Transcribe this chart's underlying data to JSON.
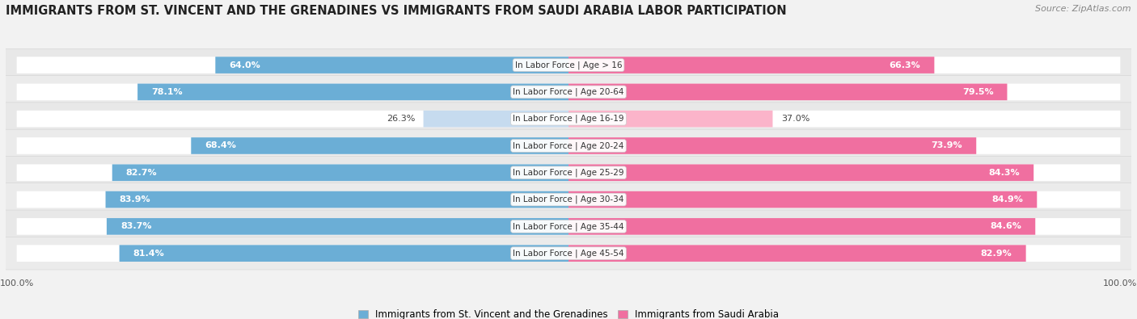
{
  "title": "IMMIGRANTS FROM ST. VINCENT AND THE GRENADINES VS IMMIGRANTS FROM SAUDI ARABIA LABOR PARTICIPATION",
  "source": "Source: ZipAtlas.com",
  "categories": [
    "In Labor Force | Age > 16",
    "In Labor Force | Age 20-64",
    "In Labor Force | Age 16-19",
    "In Labor Force | Age 20-24",
    "In Labor Force | Age 25-29",
    "In Labor Force | Age 30-34",
    "In Labor Force | Age 35-44",
    "In Labor Force | Age 45-54"
  ],
  "left_values": [
    64.0,
    78.1,
    26.3,
    68.4,
    82.7,
    83.9,
    83.7,
    81.4
  ],
  "right_values": [
    66.3,
    79.5,
    37.0,
    73.9,
    84.3,
    84.9,
    84.6,
    82.9
  ],
  "left_color": "#6baed6",
  "right_color": "#f06fa0",
  "left_color_light": "#c6dbef",
  "right_color_light": "#fbb4ca",
  "label_left": "Immigrants from St. Vincent and the Grenadines",
  "label_right": "Immigrants from Saudi Arabia",
  "background_color": "#f2f2f2",
  "row_bg_even": "#e8e8e8",
  "row_bg_odd": "#ebebeb",
  "bar_background": "#ffffff",
  "title_fontsize": 10.5,
  "source_fontsize": 8,
  "bar_label_fontsize": 8,
  "cat_label_fontsize": 7.5
}
